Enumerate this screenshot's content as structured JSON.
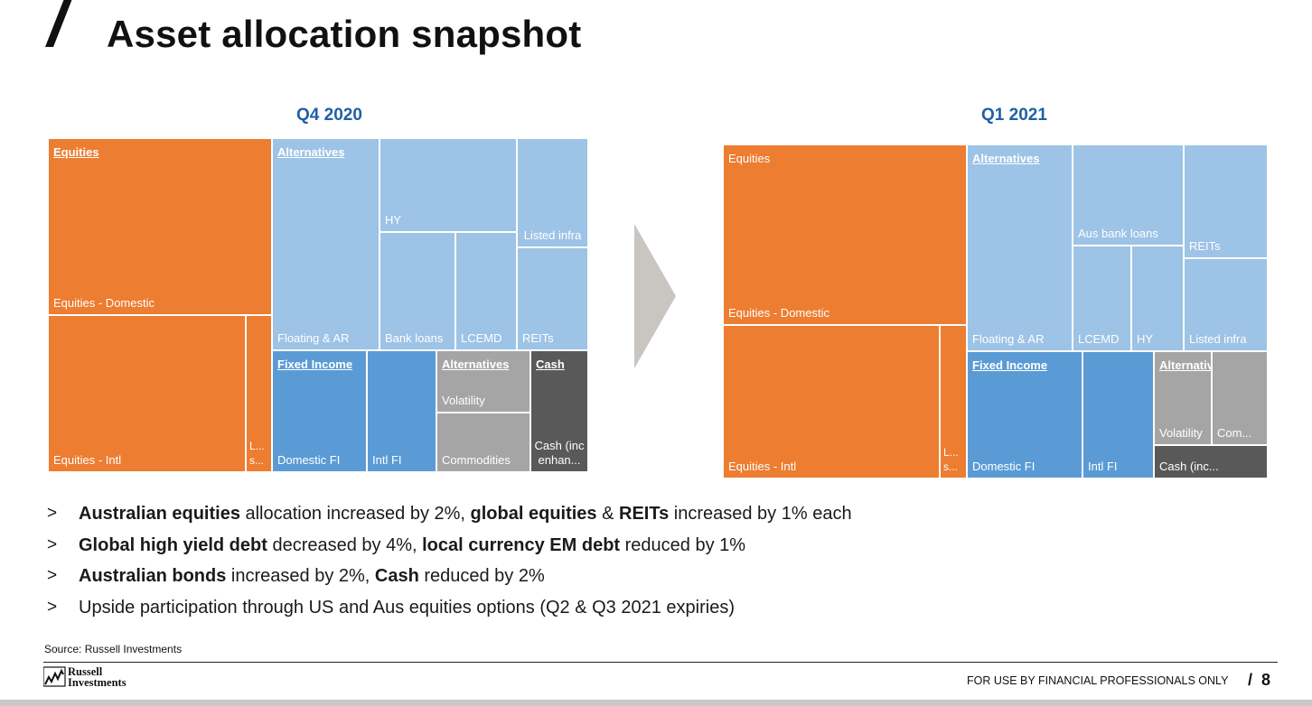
{
  "header": {
    "title": "Asset allocation snapshot"
  },
  "colors": {
    "equities": "#ed7d31",
    "alternatives_light": "#9dc3e6",
    "fixed_income": "#5b9bd5",
    "alternatives_gray": "#a5a5a5",
    "cash": "#595959",
    "accent_blue": "#1f5fa6",
    "arrow": "#c9c6c2"
  },
  "chart_data": [
    {
      "type": "treemap",
      "title": "Q4 2020",
      "groups": [
        {
          "name": "Equities",
          "color": "#ed7d31",
          "items": [
            "Equities - Domestic",
            "Equities - Intl",
            "L... s..."
          ]
        },
        {
          "name": "Alternatives",
          "color": "#9dc3e6",
          "items": [
            "Floating & AR",
            "HY",
            "Bank loans",
            "LCEMD",
            "Listed infra",
            "REITs"
          ]
        },
        {
          "name": "Fixed Income",
          "color": "#5b9bd5",
          "items": [
            "Domestic FI",
            "Intl FI"
          ]
        },
        {
          "name": "Alternatives",
          "color": "#a5a5a5",
          "items": [
            "Volatility",
            "Commodities"
          ]
        },
        {
          "name": "Cash",
          "color": "#595959",
          "items": [
            "Cash (inc enhan..."
          ]
        }
      ]
    },
    {
      "type": "treemap",
      "title": "Q1 2021",
      "groups": [
        {
          "name": "Equities",
          "color": "#ed7d31",
          "items": [
            "Equities - Domestic",
            "Equities - Intl",
            "L... s..."
          ]
        },
        {
          "name": "Alternatives",
          "color": "#9dc3e6",
          "items": [
            "Floating & AR",
            "Aus bank loans",
            "REITs",
            "LCEMD",
            "HY",
            "Listed infra"
          ]
        },
        {
          "name": "Fixed Income",
          "color": "#5b9bd5",
          "items": [
            "Domestic FI",
            "Intl FI"
          ]
        },
        {
          "name": "Alternatives",
          "color": "#a5a5a5",
          "items": [
            "Volatility",
            "Com..."
          ]
        },
        {
          "name": "Cash",
          "color": "#595959",
          "items": [
            "Cash (inc..."
          ]
        }
      ]
    }
  ],
  "bullets": [
    {
      "bullet": ">",
      "parts": [
        {
          "b": true,
          "t": "Australian equities"
        },
        {
          "b": false,
          "t": " allocation increased by 2%, "
        },
        {
          "b": true,
          "t": "global equities"
        },
        {
          "b": false,
          "t": " & "
        },
        {
          "b": true,
          "t": "REITs"
        },
        {
          "b": false,
          "t": " increased by 1% each"
        }
      ]
    },
    {
      "bullet": ">",
      "parts": [
        {
          "b": true,
          "t": "Global high yield debt"
        },
        {
          "b": false,
          "t": " decreased by 4%, "
        },
        {
          "b": true,
          "t": "local currency EM debt"
        },
        {
          "b": false,
          "t": " reduced by 1%"
        }
      ]
    },
    {
      "bullet": ">",
      "parts": [
        {
          "b": true,
          "t": "Australian bonds"
        },
        {
          "b": false,
          "t": " increased by 2%, "
        },
        {
          "b": true,
          "t": "Cash"
        },
        {
          "b": false,
          "t": " reduced by 2%"
        }
      ]
    },
    {
      "bullet": ">",
      "parts": [
        {
          "b": false,
          "t": "Upside participation through US and Aus equities options (Q2 & Q3 2021 expiries)"
        }
      ]
    }
  ],
  "source": "Source: Russell Investments",
  "logo": {
    "line1": "Russell",
    "line2": "Investments"
  },
  "footer": {
    "disclaimer": "FOR USE BY FINANCIAL PROFESSIONALS ONLY",
    "page_prefix": "/",
    "page_number": "8"
  }
}
